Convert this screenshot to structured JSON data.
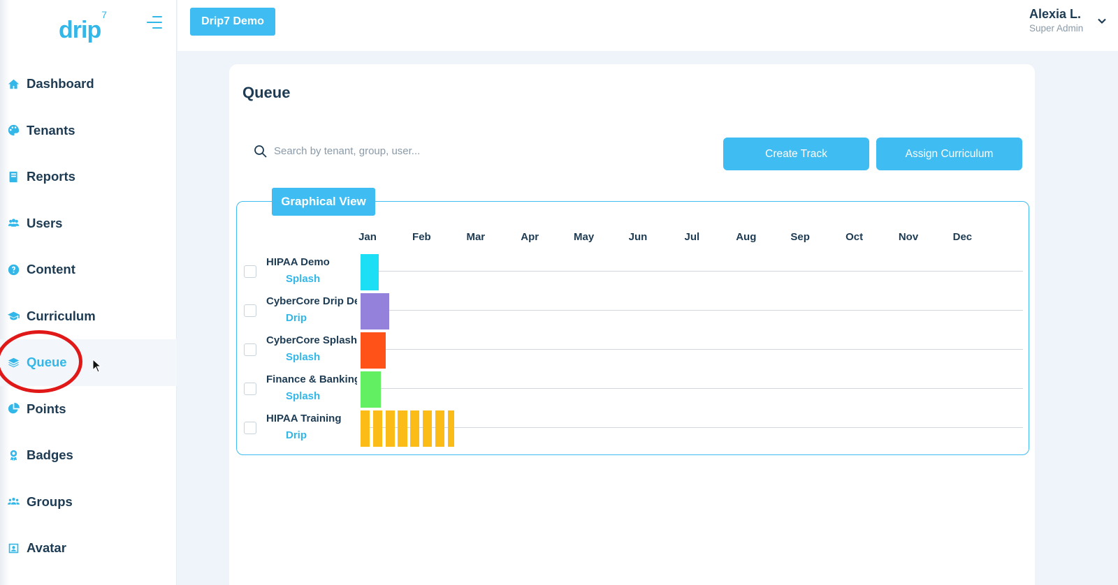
{
  "sidebar": {
    "logo": "drip",
    "logo_sup": "7",
    "items": [
      {
        "label": "Dashboard",
        "icon": "home-icon"
      },
      {
        "label": "Tenants",
        "icon": "palette-icon"
      },
      {
        "label": "Reports",
        "icon": "book-icon"
      },
      {
        "label": "Users",
        "icon": "users-icon"
      },
      {
        "label": "Content",
        "icon": "question-icon"
      },
      {
        "label": "Curriculum",
        "icon": "graduation-cap-icon"
      },
      {
        "label": "Queue",
        "icon": "layers-icon",
        "active": true
      },
      {
        "label": "Points",
        "icon": "pie-chart-icon"
      },
      {
        "label": "Badges",
        "icon": "award-icon"
      },
      {
        "label": "Groups",
        "icon": "group-icon"
      },
      {
        "label": "Avatar",
        "icon": "portrait-icon"
      }
    ]
  },
  "topbar": {
    "tenant_button": "Drip7 Demo",
    "user_name": "Alexia L.",
    "user_role": "Super Admin"
  },
  "main": {
    "title": "Queue",
    "search": {
      "placeholder": "Search by tenant, group, user...",
      "value": ""
    },
    "create_track_label": "Create Track",
    "assign_curriculum_label": "Assign Curriculum",
    "graphical_view": {
      "tab_label": "Graphical View",
      "months": [
        "Jan",
        "Feb",
        "Mar",
        "Apr",
        "May",
        "Jun",
        "Jul",
        "Aug",
        "Sep",
        "Oct",
        "Nov",
        "Dec"
      ],
      "rows": [
        {
          "name": "HIPAA Demo",
          "type": "Splash",
          "color": "#1cdef5",
          "bars": [
            {
              "start": 0.0,
              "end": 0.33
            }
          ]
        },
        {
          "name": "CyberCore Drip Demo",
          "type": "Drip",
          "color": "#9481db",
          "bars": [
            {
              "start": 0.0,
              "end": 0.53
            }
          ]
        },
        {
          "name": "CyberCore Splash",
          "type": "Splash",
          "color": "#ff5218",
          "bars": [
            {
              "start": 0.0,
              "end": 0.47
            }
          ]
        },
        {
          "name": "Finance & Banking",
          "type": "Splash",
          "color": "#62f062",
          "bars": [
            {
              "start": 0.0,
              "end": 0.37
            }
          ]
        },
        {
          "name": "HIPAA Training",
          "type": "Drip",
          "color": "#fbbc18",
          "bars": [
            {
              "start": 0.0,
              "end": 0.17
            },
            {
              "start": 0.23,
              "end": 0.4
            },
            {
              "start": 0.46,
              "end": 0.63
            },
            {
              "start": 0.69,
              "end": 0.86
            },
            {
              "start": 0.92,
              "end": 1.09
            },
            {
              "start": 1.15,
              "end": 1.32
            },
            {
              "start": 1.38,
              "end": 1.55
            },
            {
              "start": 1.61,
              "end": 1.73
            }
          ]
        }
      ]
    }
  },
  "colors": {
    "accent": "#3fbcf1",
    "text": "#1d3b53",
    "highlight": "#e01818"
  }
}
